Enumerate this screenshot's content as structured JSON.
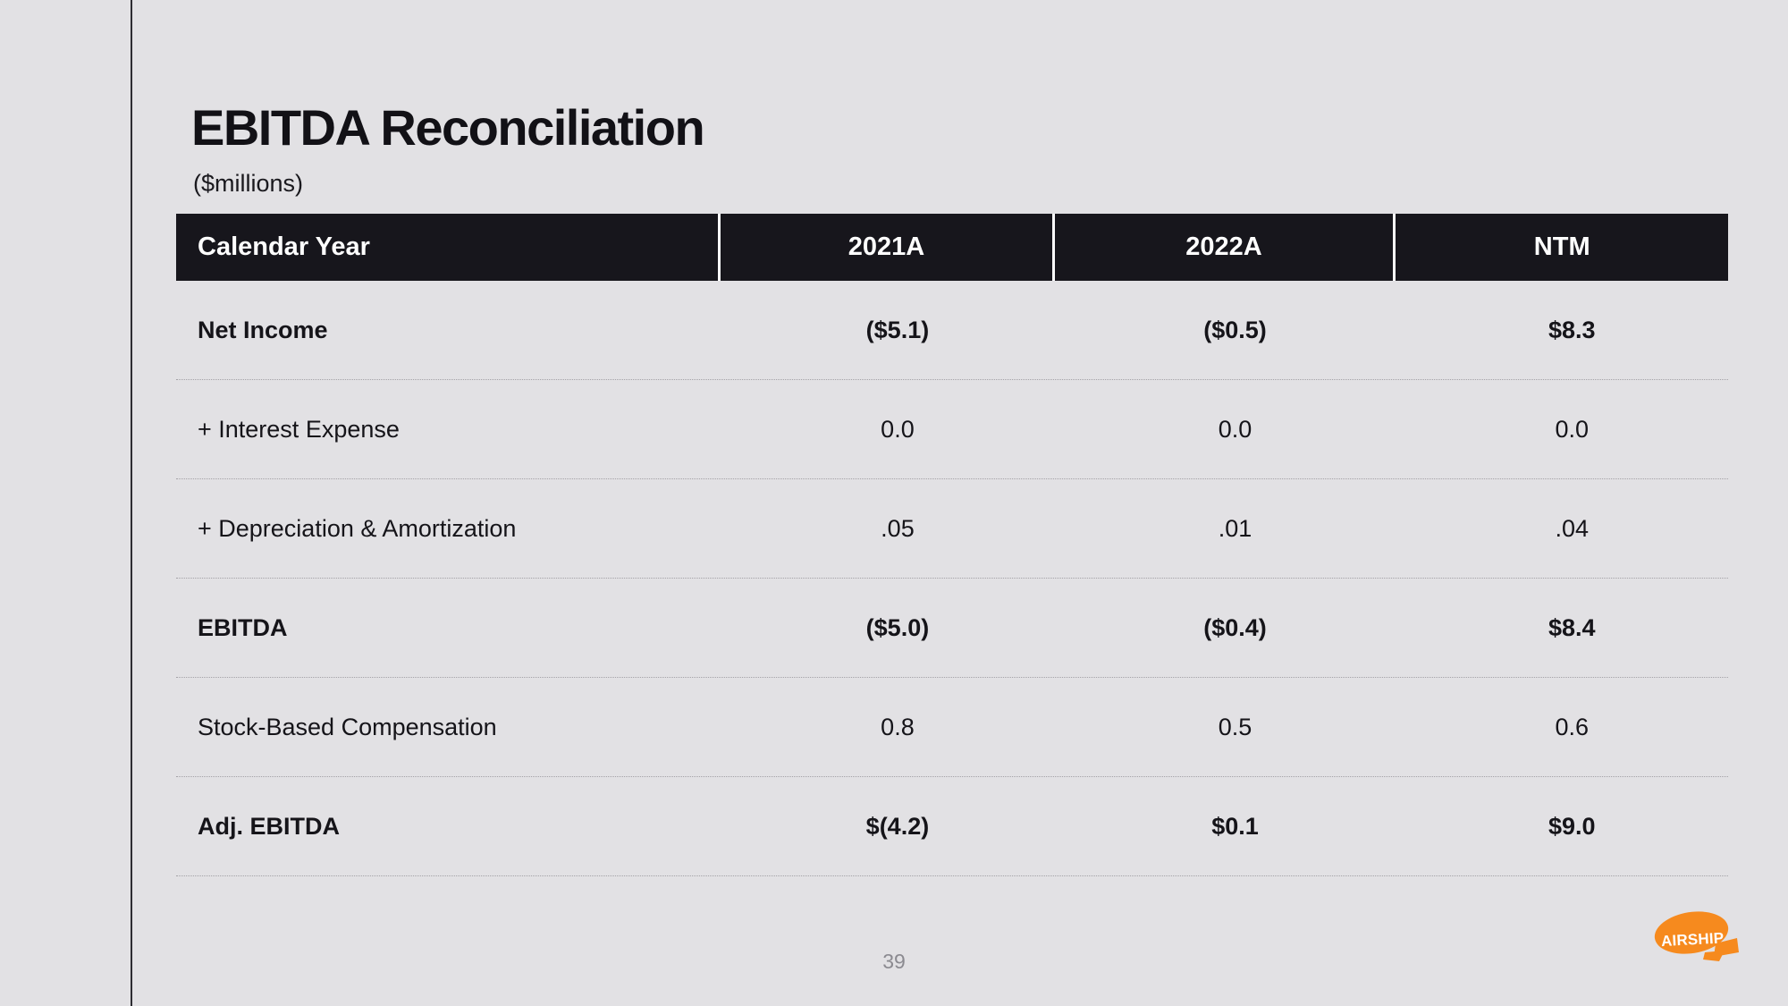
{
  "slide": {
    "title": "EBITDA Reconciliation",
    "subtitle": "($millions)",
    "page_number": "39",
    "logo_text": "AIRSHIP"
  },
  "table": {
    "header": [
      "Calendar Year",
      "2021A",
      "2022A",
      "NTM"
    ],
    "rows": [
      {
        "label": "Net Income",
        "values": [
          "($5.1)",
          "($0.5)",
          "$8.3"
        ],
        "bold": true
      },
      {
        "label": "+ Interest Expense",
        "values": [
          "0.0",
          "0.0",
          "0.0"
        ],
        "bold": false
      },
      {
        "label": "+ Depreciation & Amortization",
        "values": [
          ".05",
          ".01",
          ".04"
        ],
        "bold": false
      },
      {
        "label": "EBITDA",
        "values": [
          "($5.0)",
          "($0.4)",
          "$8.4"
        ],
        "bold": true
      },
      {
        "label": "Stock-Based Compensation",
        "values": [
          "0.8",
          "0.5",
          "0.6"
        ],
        "bold": false
      },
      {
        "label": "Adj. EBITDA",
        "values": [
          "$(4.2)",
          "$0.1",
          "$9.0"
        ],
        "bold": true
      }
    ]
  },
  "colors": {
    "background": "#e2e1e4",
    "header_background": "#17161c",
    "header_text": "#ffffff",
    "body_text": "#151419",
    "divider_dotted": "#a3a1a6",
    "left_rule": "#2e2d32",
    "page_number": "#8b8a90",
    "logo_orange": "#f68a1e"
  }
}
